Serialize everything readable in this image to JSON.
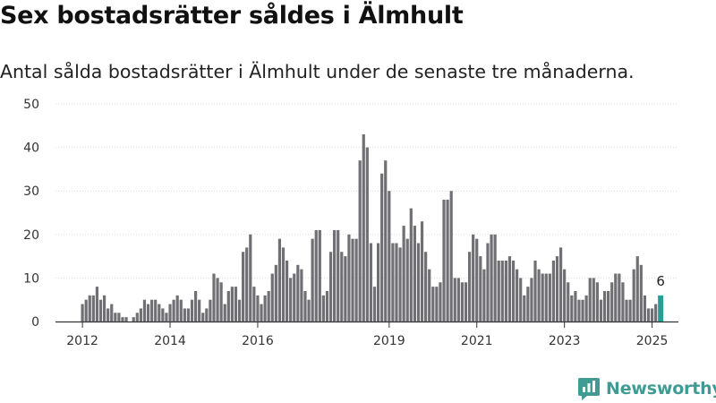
{
  "header": {
    "title": "Sex bostadsrätter såldes i Älmhult",
    "subtitle": "Antal sålda bostadsrätter i Älmhult under de senaste tre månaderna."
  },
  "brand": {
    "name": "Newsworthy",
    "icon": "newsworthy-logo-icon",
    "color": "#3f9b93"
  },
  "chart_data": {
    "type": "bar",
    "title": "",
    "xlabel": "",
    "ylabel": "",
    "ylim": [
      0,
      50
    ],
    "yticks": [
      0,
      10,
      20,
      30,
      40,
      50
    ],
    "xtick_labels": [
      "2012",
      "2014",
      "2016",
      "2019",
      "2021",
      "2023",
      "2025"
    ],
    "x_start": "2012-01",
    "x_end": "2025-02",
    "grid": true,
    "bar_color": "#706f73",
    "highlight_color": "#2a9d95",
    "highlight_last": true,
    "last_value_label": "6",
    "values": [
      4,
      5,
      6,
      6,
      8,
      5,
      6,
      3,
      4,
      2,
      2,
      1,
      1,
      0,
      1,
      2,
      3,
      5,
      4,
      5,
      5,
      4,
      3,
      2,
      4,
      5,
      6,
      5,
      3,
      3,
      5,
      7,
      5,
      2,
      3,
      5,
      11,
      10,
      9,
      4,
      7,
      8,
      8,
      5,
      16,
      17,
      20,
      8,
      6,
      4,
      6,
      7,
      11,
      13,
      19,
      17,
      14,
      10,
      11,
      13,
      12,
      7,
      5,
      19,
      21,
      21,
      6,
      7,
      16,
      21,
      21,
      16,
      15,
      20,
      19,
      19,
      37,
      43,
      40,
      18,
      8,
      18,
      34,
      37,
      30,
      18,
      18,
      17,
      22,
      19,
      26,
      22,
      18,
      23,
      16,
      12,
      8,
      8,
      9,
      28,
      28,
      30,
      10,
      10,
      9,
      9,
      16,
      20,
      19,
      15,
      12,
      18,
      20,
      20,
      14,
      14,
      14,
      15,
      14,
      12,
      10,
      6,
      8,
      10,
      14,
      12,
      11,
      11,
      11,
      14,
      15,
      17,
      12,
      9,
      6,
      7,
      5,
      5,
      6,
      10,
      10,
      9,
      5,
      7,
      7,
      9,
      11,
      11,
      9,
      5,
      5,
      12,
      15,
      13,
      6,
      3,
      3,
      4,
      6
    ]
  }
}
